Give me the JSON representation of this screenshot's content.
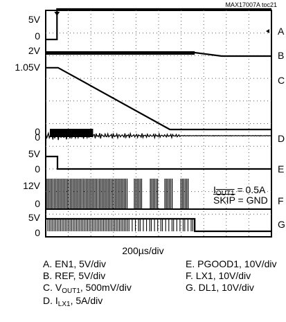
{
  "figure_id": "MAX17007A toc21",
  "timebase": "200µs/div",
  "channels": [
    {
      "id": "A",
      "name": "EN1",
      "scale": "5V/div",
      "levels": [
        "5V",
        "0"
      ]
    },
    {
      "id": "B",
      "name": "REF",
      "scale": "5V/div",
      "levels": [
        "2V"
      ]
    },
    {
      "id": "C",
      "name": "VOUT1",
      "scale": "500mV/div",
      "levels": [
        "1.05V",
        "0"
      ]
    },
    {
      "id": "D",
      "name": "ILX1",
      "scale": "5A/div",
      "levels": [
        "0"
      ]
    },
    {
      "id": "E",
      "name": "PGOOD1",
      "scale": "10V/div",
      "levels": [
        "5V",
        "0"
      ]
    },
    {
      "id": "F",
      "name": "LX1",
      "scale": "10V/div",
      "levels": [
        "12V",
        "0"
      ]
    },
    {
      "id": "G",
      "name": "DL1",
      "scale": "10V/div",
      "levels": [
        "5V",
        "0"
      ]
    }
  ],
  "annotations": {
    "iout_prefix": "I",
    "iout_sub": "OUT1",
    "iout_value": " = 0.5A",
    "skip_name": "SKIP",
    "skip_value": " = GND"
  },
  "legend": {
    "a": "A. EN1, 5V/div",
    "b": "B. REF, 5V/div",
    "c_prefix": "C. V",
    "c_sub": "OUT1",
    "c_suffix": ", 500mV/div",
    "d_prefix": "D. I",
    "d_sub": "LX1",
    "d_suffix": ", 5A/div",
    "e": "E. PGOOD1, 10V/div",
    "f": "F. LX1, 10V/div",
    "g": "G. DL1, 10V/div"
  },
  "chart_data": {
    "type": "line",
    "title": "",
    "x_unit": "div",
    "x_range": [
      0,
      10
    ],
    "x_per_div": "200µs",
    "grid": true,
    "series": [
      {
        "name": "EN1",
        "points": [
          [
            0,
            0
          ],
          [
            0.5,
            0
          ],
          [
            0.5,
            5
          ],
          [
            10,
            5
          ]
        ]
      },
      {
        "name": "REF",
        "points": [
          [
            0,
            2
          ],
          [
            6.6,
            2
          ],
          [
            7.8,
            1.58
          ],
          [
            10,
            1.58
          ]
        ]
      },
      {
        "name": "VOUT1",
        "points": [
          [
            0,
            1.05
          ],
          [
            0.55,
            1.05
          ],
          [
            5.5,
            0
          ],
          [
            10,
            0
          ]
        ]
      },
      {
        "name": "PGOOD1",
        "points": [
          [
            0,
            5
          ],
          [
            0.52,
            5
          ],
          [
            0.52,
            0
          ],
          [
            10,
            0
          ]
        ]
      },
      {
        "name": "DL1",
        "points": [
          [
            0,
            5
          ],
          [
            6.6,
            5
          ],
          [
            6.6,
            0
          ],
          [
            10,
            0
          ]
        ]
      }
    ]
  }
}
